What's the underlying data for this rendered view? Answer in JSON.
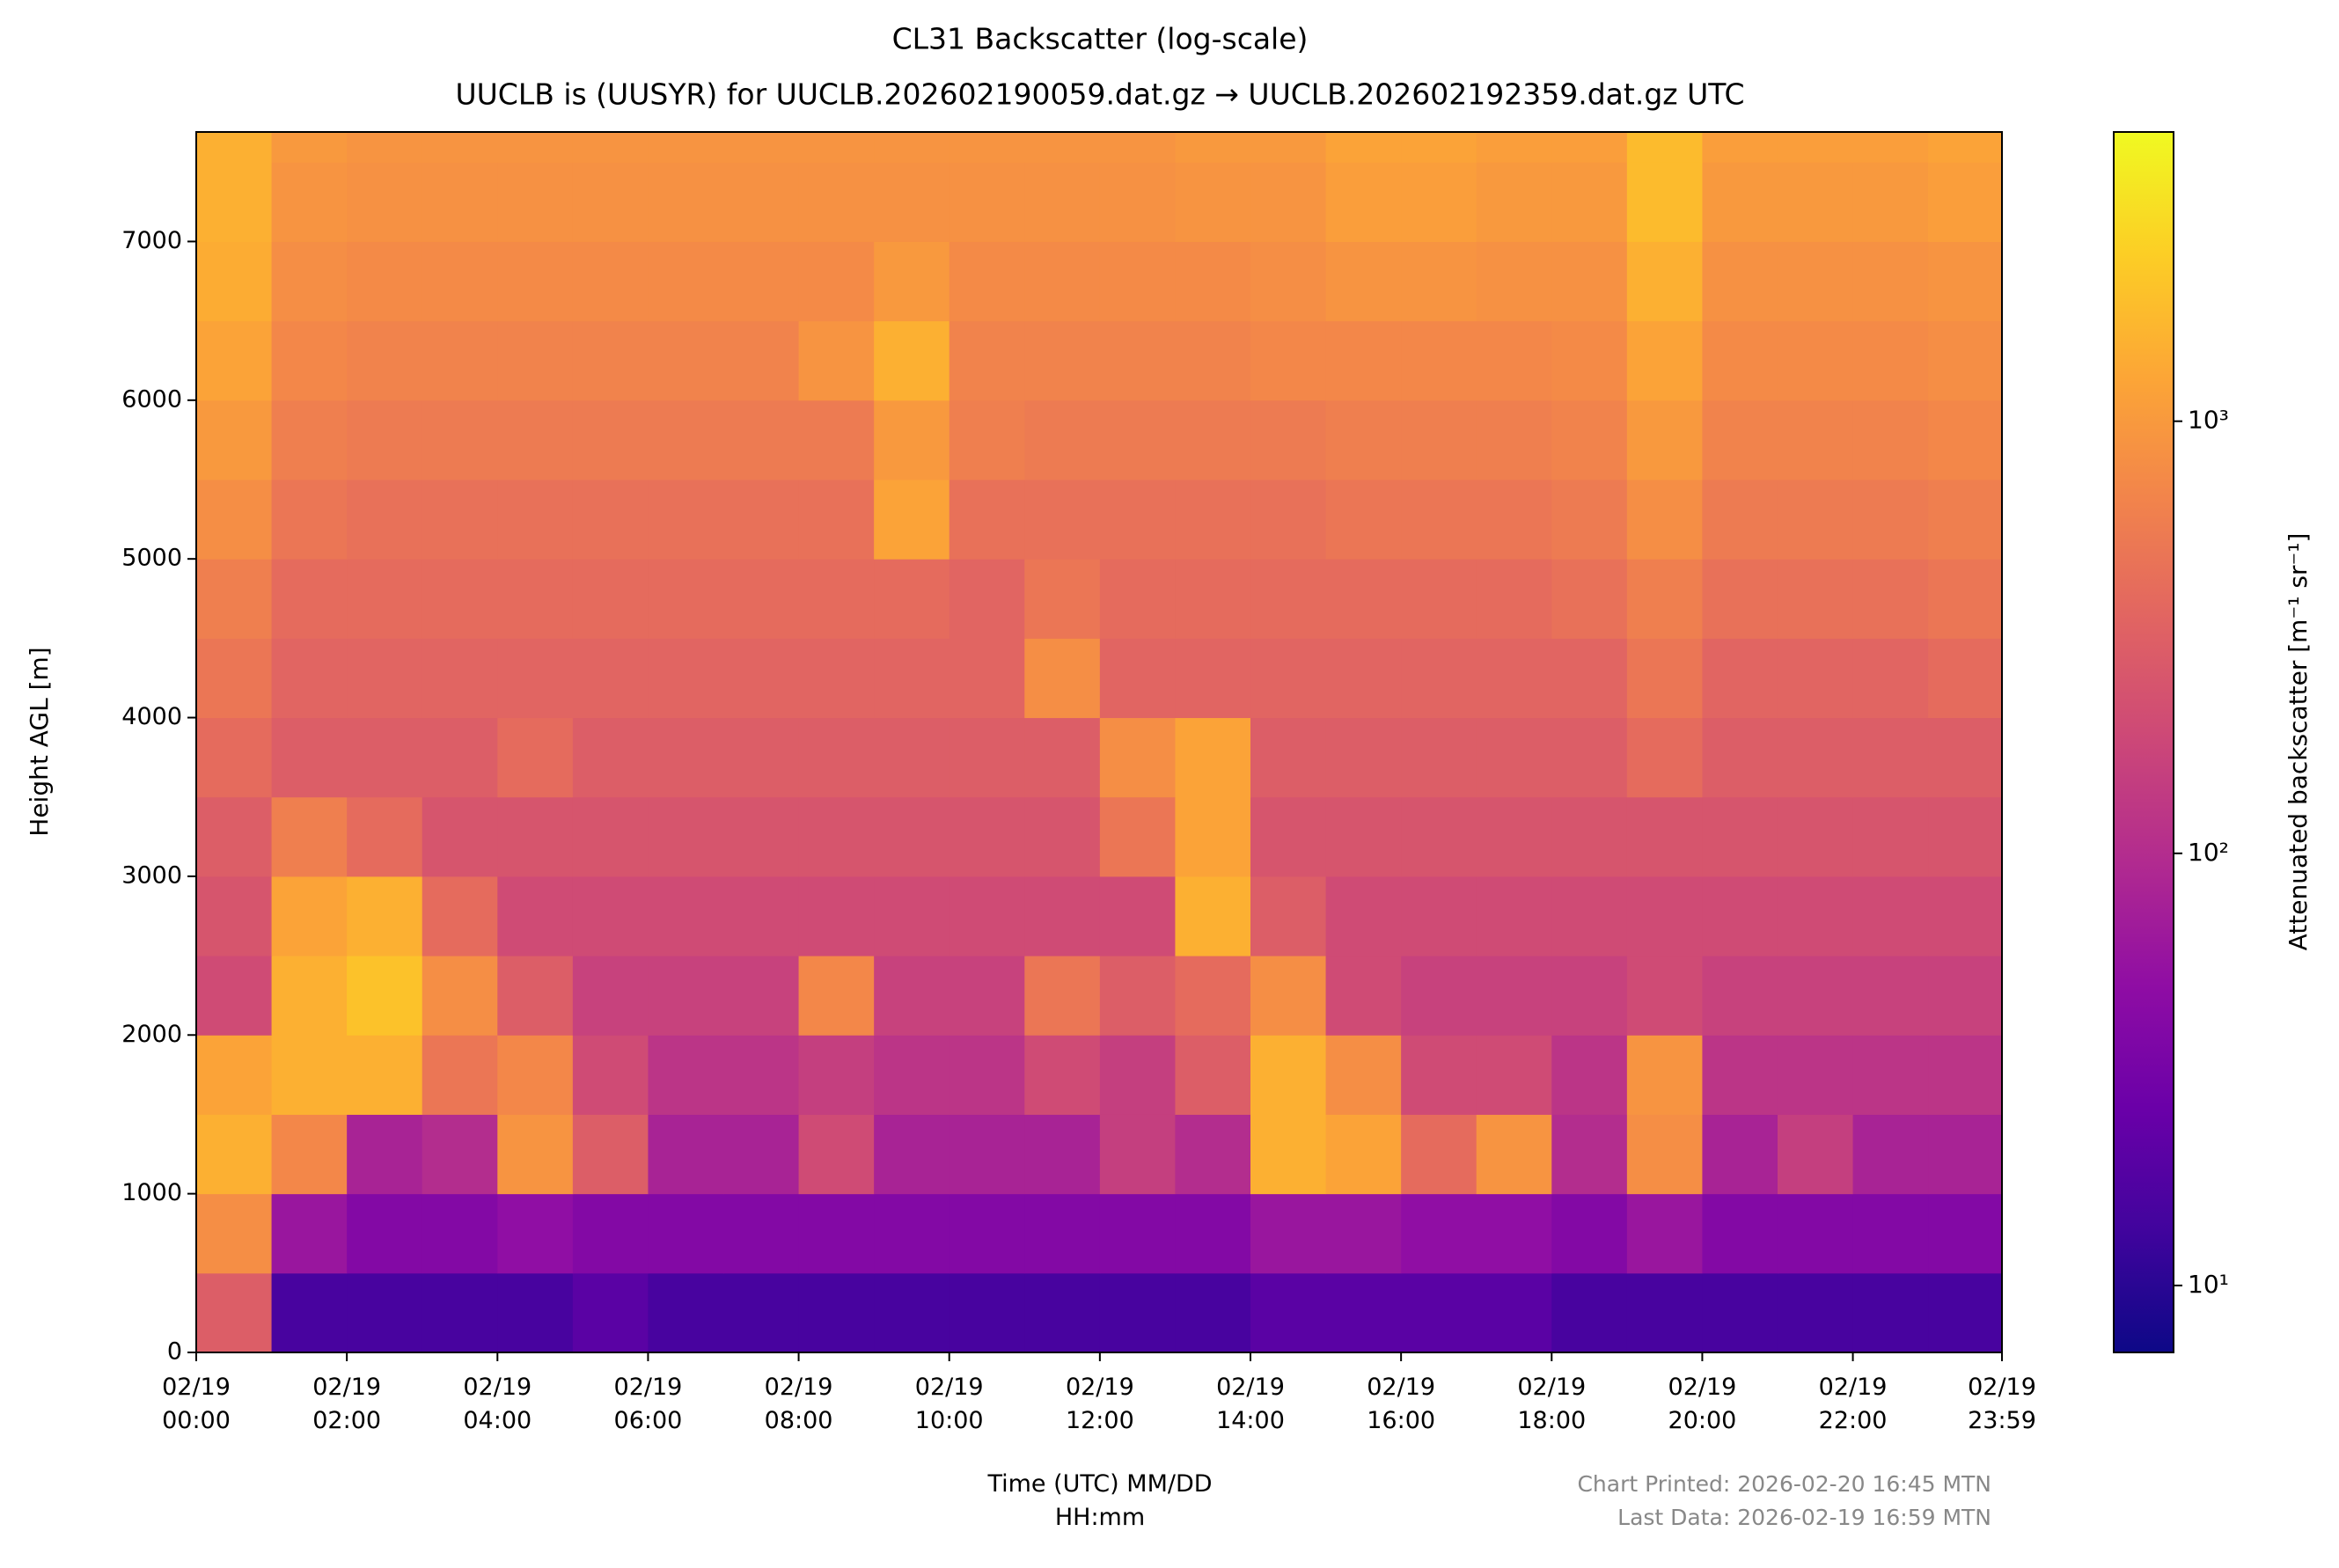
{
  "chart_data": {
    "type": "heatmap",
    "title": "CL31 Backscatter (log-scale)",
    "subtitle": "UUCLB is (UUSYR) for UUCLB.202602190059.dat.gz → UUCLB.202602192359.dat.gz UTC",
    "x_label": "Time (UTC) MM/DD\nHH:mm",
    "y_label": "Height AGL [m]",
    "colorbar_label": "Attenuated backscatter [m⁻¹ sr⁻¹]",
    "colormap": "plasma",
    "color_log_scale": true,
    "clim": [
      7,
      4670
    ],
    "cticks": [
      {
        "value": 10,
        "label": "10¹"
      },
      {
        "value": 100,
        "label": "10²"
      },
      {
        "value": 1000,
        "label": "10³"
      }
    ],
    "xlim": [
      0,
      23.98
    ],
    "xticks": [
      {
        "value": 0,
        "label": "02/19\n00:00"
      },
      {
        "value": 2,
        "label": "02/19\n02:00"
      },
      {
        "value": 4,
        "label": "02/19\n04:00"
      },
      {
        "value": 6,
        "label": "02/19\n06:00"
      },
      {
        "value": 8,
        "label": "02/19\n08:00"
      },
      {
        "value": 10,
        "label": "02/19\n10:00"
      },
      {
        "value": 12,
        "label": "02/19\n12:00"
      },
      {
        "value": 14,
        "label": "02/19\n14:00"
      },
      {
        "value": 16,
        "label": "02/19\n16:00"
      },
      {
        "value": 18,
        "label": "02/19\n18:00"
      },
      {
        "value": 20,
        "label": "02/19\n20:00"
      },
      {
        "value": 22,
        "label": "02/19\n22:00"
      },
      {
        "value": 23.98,
        "label": "02/19\n23:59"
      }
    ],
    "ylim": [
      0,
      7690
    ],
    "yticks": [
      0,
      1000,
      2000,
      3000,
      4000,
      5000,
      6000,
      7000
    ],
    "x_edges": [
      0,
      1,
      2,
      3,
      4,
      5,
      6,
      7,
      8,
      9,
      10,
      11,
      12,
      13,
      14,
      15,
      16,
      17,
      18,
      19,
      20,
      21,
      22,
      23,
      23.98
    ],
    "y_edges": [
      0,
      500,
      1000,
      1500,
      2000,
      2500,
      3000,
      3500,
      4000,
      4500,
      5000,
      5500,
      6000,
      6500,
      7000,
      7500,
      7690
    ],
    "values": [
      [
        300,
        15,
        15,
        15,
        15,
        20,
        15,
        15,
        15,
        15,
        15,
        15,
        15,
        15,
        20,
        20,
        20,
        20,
        15,
        15,
        15,
        15,
        15,
        15
      ],
      [
        800,
        60,
        40,
        40,
        50,
        40,
        40,
        40,
        40,
        40,
        40,
        40,
        40,
        40,
        60,
        60,
        50,
        50,
        40,
        60,
        40,
        40,
        40,
        40
      ],
      [
        1500,
        700,
        80,
        100,
        900,
        300,
        80,
        80,
        200,
        80,
        80,
        80,
        150,
        100,
        1500,
        1200,
        400,
        900,
        100,
        800,
        80,
        150,
        80,
        80
      ],
      [
        1200,
        1500,
        1500,
        500,
        700,
        200,
        120,
        120,
        150,
        120,
        120,
        200,
        150,
        300,
        1500,
        800,
        200,
        200,
        120,
        900,
        120,
        120,
        120,
        120
      ],
      [
        200,
        1500,
        2000,
        800,
        300,
        160,
        160,
        160,
        700,
        160,
        160,
        500,
        300,
        400,
        800,
        200,
        160,
        160,
        160,
        200,
        160,
        160,
        160,
        160
      ],
      [
        250,
        1200,
        1500,
        400,
        200,
        200,
        200,
        200,
        200,
        200,
        200,
        200,
        200,
        1500,
        300,
        200,
        200,
        200,
        200,
        200,
        200,
        200,
        200,
        200
      ],
      [
        300,
        600,
        400,
        250,
        250,
        250,
        250,
        250,
        250,
        250,
        250,
        250,
        500,
        1200,
        250,
        250,
        250,
        250,
        250,
        250,
        250,
        250,
        250,
        250
      ],
      [
        400,
        300,
        300,
        300,
        400,
        300,
        300,
        300,
        300,
        300,
        300,
        300,
        800,
        1200,
        300,
        300,
        300,
        300,
        300,
        400,
        300,
        300,
        300,
        300
      ],
      [
        500,
        350,
        350,
        350,
        350,
        350,
        350,
        350,
        350,
        350,
        350,
        800,
        350,
        350,
        350,
        350,
        350,
        350,
        350,
        500,
        350,
        350,
        350,
        400
      ],
      [
        600,
        400,
        400,
        400,
        400,
        400,
        400,
        400,
        400,
        400,
        350,
        500,
        400,
        400,
        400,
        400,
        400,
        400,
        450,
        600,
        450,
        450,
        450,
        500
      ],
      [
        800,
        500,
        450,
        450,
        450,
        450,
        450,
        450,
        450,
        1200,
        450,
        450,
        450,
        450,
        450,
        500,
        500,
        500,
        550,
        800,
        550,
        550,
        550,
        600
      ],
      [
        1000,
        600,
        550,
        550,
        550,
        550,
        550,
        550,
        550,
        1000,
        600,
        550,
        550,
        550,
        550,
        600,
        600,
        600,
        650,
        1000,
        650,
        650,
        650,
        700
      ],
      [
        1200,
        700,
        650,
        650,
        650,
        650,
        650,
        650,
        900,
        1500,
        650,
        650,
        650,
        650,
        700,
        700,
        700,
        700,
        750,
        1200,
        750,
        750,
        750,
        800
      ],
      [
        1400,
        800,
        750,
        750,
        750,
        750,
        750,
        750,
        750,
        1000,
        750,
        750,
        750,
        750,
        800,
        900,
        900,
        850,
        850,
        1500,
        850,
        850,
        850,
        900
      ],
      [
        1500,
        900,
        850,
        850,
        850,
        850,
        850,
        850,
        850,
        850,
        850,
        850,
        850,
        900,
        900,
        1100,
        1100,
        1000,
        1000,
        1800,
        1000,
        1000,
        1000,
        1100
      ],
      [
        1500,
        1000,
        900,
        900,
        900,
        900,
        900,
        900,
        900,
        900,
        900,
        900,
        900,
        1000,
        1000,
        1200,
        1200,
        1100,
        1100,
        1800,
        1100,
        1100,
        1100,
        1200
      ]
    ],
    "footnotes": [
      "Chart Printed: 2026-02-20 16:45 MTN",
      "Last Data: 2026-02-19 16:59 MTN"
    ]
  }
}
